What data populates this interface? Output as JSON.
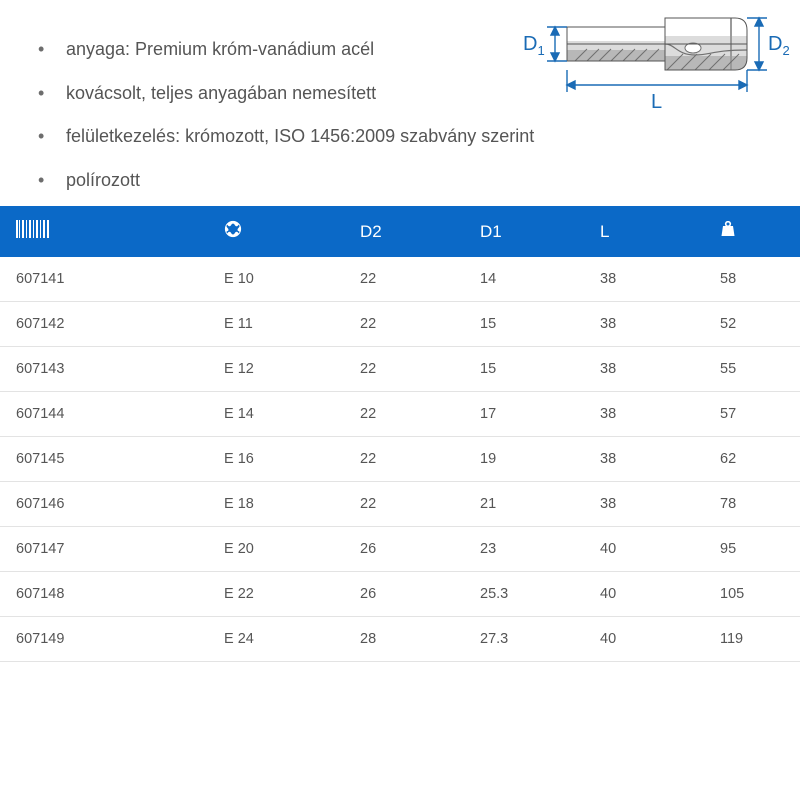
{
  "bullets": [
    "anyaga: Premium króm-vanádium acél",
    "kovácsolt, teljes anyagában nemesített",
    "felületkezelés: krómozott, ISO 1456:2009 szabvány szerint",
    "polírozott"
  ],
  "diagram": {
    "labels": {
      "d1": "D",
      "d1_sub": "1",
      "d2": "D",
      "d2_sub": "2",
      "l": "L"
    },
    "colors": {
      "schematic_line": "#1a6bb5",
      "schematic_fill": "#d9d9d9",
      "schematic_hatch": "#6f6f6f",
      "schematic_shadow": "#a8a8a8"
    }
  },
  "table": {
    "header_bg": "#0b69c7",
    "header_fg": "#ffffff",
    "row_border": "#e3e3e3",
    "columns": [
      {
        "key": "code",
        "icon": "barcode"
      },
      {
        "key": "size",
        "icon": "torx"
      },
      {
        "key": "d2",
        "label": "D2"
      },
      {
        "key": "d1",
        "label": "D1"
      },
      {
        "key": "l",
        "label": "L"
      },
      {
        "key": "weight",
        "icon": "weight"
      }
    ],
    "rows": [
      {
        "code": "607141",
        "size": "E 10",
        "d2": "22",
        "d1": "14",
        "l": "38",
        "weight": "58"
      },
      {
        "code": "607142",
        "size": "E 11",
        "d2": "22",
        "d1": "15",
        "l": "38",
        "weight": "52"
      },
      {
        "code": "607143",
        "size": "E 12",
        "d2": "22",
        "d1": "15",
        "l": "38",
        "weight": "55"
      },
      {
        "code": "607144",
        "size": "E 14",
        "d2": "22",
        "d1": "17",
        "l": "38",
        "weight": "57"
      },
      {
        "code": "607145",
        "size": "E 16",
        "d2": "22",
        "d1": "19",
        "l": "38",
        "weight": "62"
      },
      {
        "code": "607146",
        "size": "E 18",
        "d2": "22",
        "d1": "21",
        "l": "38",
        "weight": "78"
      },
      {
        "code": "607147",
        "size": "E 20",
        "d2": "26",
        "d1": "23",
        "l": "40",
        "weight": "95"
      },
      {
        "code": "607148",
        "size": "E 22",
        "d2": "26",
        "d1": "25.3",
        "l": "40",
        "weight": "105"
      },
      {
        "code": "607149",
        "size": "E 24",
        "d2": "28",
        "d1": "27.3",
        "l": "40",
        "weight": "119"
      }
    ]
  }
}
